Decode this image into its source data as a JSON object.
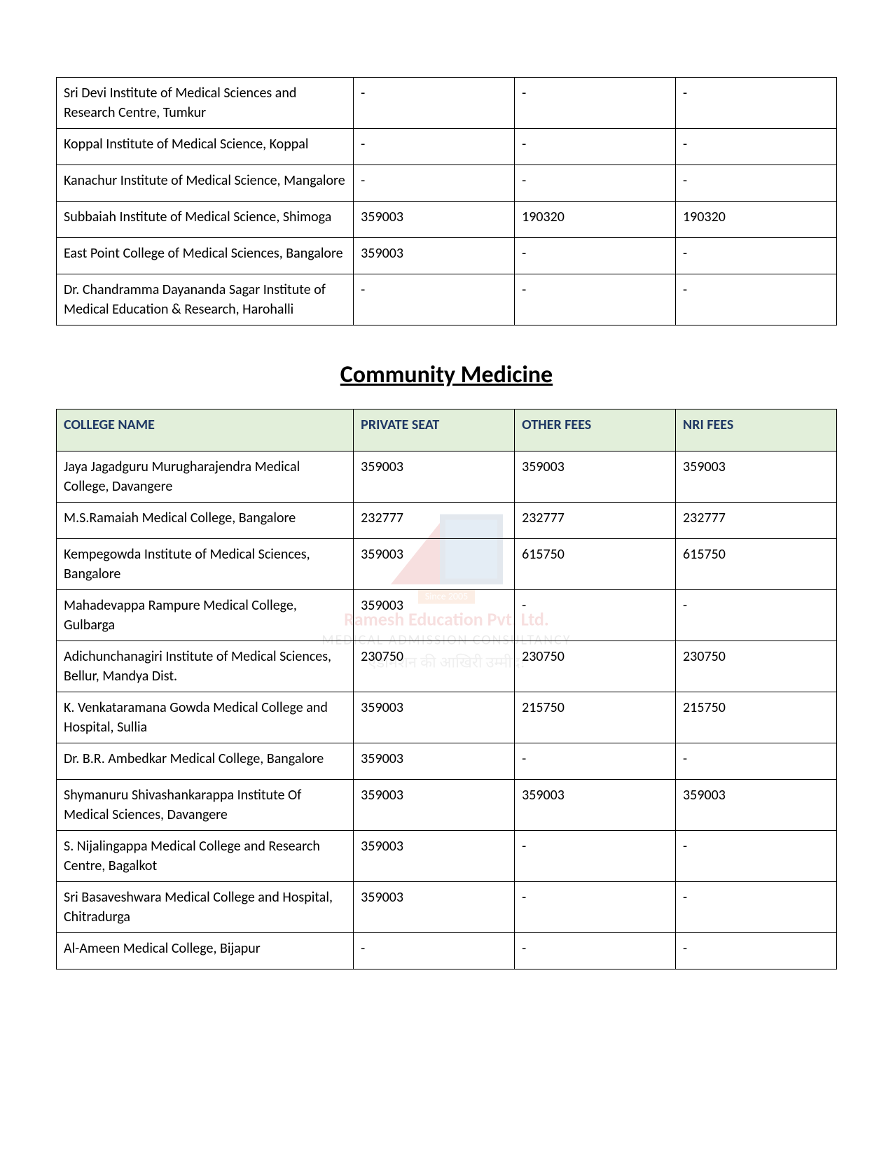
{
  "table1": {
    "rows": [
      [
        "Sri Devi Institute of Medical Sciences and Research Centre, Tumkur",
        "-",
        "-",
        "-"
      ],
      [
        "Koppal Institute of Medical Science, Koppal",
        "-",
        "-",
        "-"
      ],
      [
        "Kanachur Institute of Medical Science, Mangalore",
        "-",
        "-",
        "-"
      ],
      [
        "Subbaiah Institute of Medical Science, Shimoga",
        "359003",
        "190320",
        "190320"
      ],
      [
        "East Point College of Medical Sciences, Bangalore",
        "359003",
        "-",
        "-"
      ],
      [
        "Dr. Chandramma Dayananda Sagar Institute of Medical Education & Research, Harohalli",
        "-",
        "-",
        "-"
      ]
    ]
  },
  "section_title": "Community Medicine",
  "table2": {
    "headers": [
      "COLLEGE NAME",
      "PRIVATE SEAT",
      "OTHER FEES",
      "NRI FEES"
    ],
    "rows": [
      [
        "Jaya Jagadguru Murugharajendra Medical College, Davangere",
        "359003",
        "359003",
        "359003"
      ],
      [
        "M.S.Ramaiah Medical College, Bangalore",
        "232777",
        "232777",
        "232777"
      ],
      [
        "Kempegowda Institute of Medical Sciences, Bangalore",
        "359003",
        "615750",
        "615750"
      ],
      [
        "Mahadevappa Rampure Medical College, Gulbarga",
        "359003",
        "-",
        "-"
      ],
      [
        "Adichunchanagiri Institute of Medical Sciences, Bellur, Mandya Dist.",
        "230750",
        "230750",
        "230750"
      ],
      [
        "K. Venkataramana Gowda Medical College and Hospital, Sullia",
        "359003",
        "215750",
        "215750"
      ],
      [
        "Dr. B.R. Ambedkar Medical College, Bangalore",
        "359003",
        "-",
        "-"
      ],
      [
        "Shymanuru Shivashankarappa Institute Of Medical Sciences, Davangere",
        "359003",
        "359003",
        "359003"
      ],
      [
        "S. Nijalingappa Medical College and Research Centre, Bagalkot",
        "359003",
        "-",
        "-"
      ],
      [
        "Sri Basaveshwara Medical College and Hospital, Chitradurga",
        "359003",
        "-",
        "-"
      ],
      [
        "Al-Ameen Medical College, Bijapur",
        "-",
        "-",
        "-"
      ]
    ]
  },
  "watermark": {
    "since": "Since 2005",
    "line1": "Ramesh Education Pvt. Ltd.",
    "line2": "MEDICAL ADMISSION CONSULTANCY",
    "line3": "एडमिशन की आखिरी उम्मीद!"
  },
  "styles": {
    "header_bg": "#e2efda",
    "header_color": "#1f3864",
    "border_color": "#000000",
    "font_size_cell": 20,
    "font_size_title": 34
  }
}
